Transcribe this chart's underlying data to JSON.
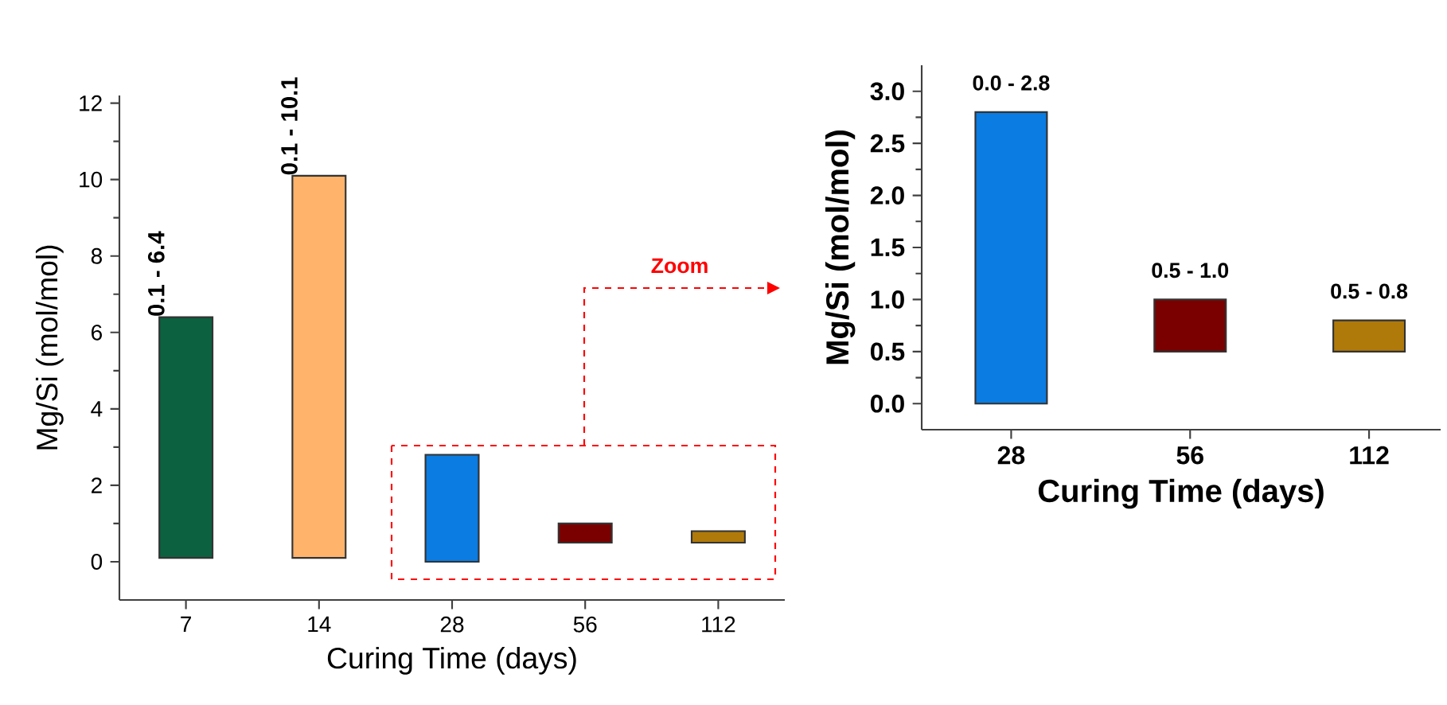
{
  "chart_data": [
    {
      "type": "bar",
      "categories": [
        "7",
        "14",
        "28",
        "56",
        "112"
      ],
      "base": [
        0.1,
        0.1,
        0.0,
        0.5,
        0.5
      ],
      "values": [
        6.3,
        10.0,
        2.8,
        0.5,
        0.3
      ],
      "colors": [
        "#0b6140",
        "#ffb36b",
        "#0a7ce2",
        "#7a0000",
        "#b07a0a"
      ],
      "xlabel": "Curing Time (days)",
      "ylabel": "Mg/Si (mol/mol)",
      "ylim": [
        -1,
        12.2
      ],
      "yticks": [
        0,
        2,
        4,
        6,
        8,
        10,
        12
      ],
      "annotations": [
        {
          "text": "0.1 - 6.4",
          "x": "7",
          "y": 6.4
        },
        {
          "text": "0.1 - 10.1",
          "x": "14",
          "y": 10.1
        },
        "Zoom"
      ]
    },
    {
      "type": "bar",
      "categories": [
        "28",
        "56",
        "112"
      ],
      "base": [
        0.0,
        0.5,
        0.5
      ],
      "values": [
        2.8,
        0.5,
        0.3
      ],
      "colors": [
        "#0a7ce2",
        "#7a0000",
        "#b07a0a"
      ],
      "xlabel": "Curing Time (days)",
      "ylabel": "Mg/Si (mol/mol)",
      "ylim": [
        -0.25,
        3.25
      ],
      "annotations": [
        {
          "text": "0.0 - 2.8",
          "x": "28",
          "y": 2.8
        },
        {
          "text": "0.5 - 1.0",
          "x": "56",
          "y": 1.0
        },
        {
          "text": "0.5 - 0.8",
          "x": "112",
          "y": 0.8
        }
      ],
      "yticks": [
        {
          "value": 0,
          "label": "0.0"
        },
        {
          "value": 0.5,
          "label": "0.5"
        },
        {
          "value": 1,
          "label": "1.0"
        },
        {
          "value": 1.5,
          "label": "1.5"
        },
        {
          "value": 2,
          "label": "2.0"
        },
        {
          "value": 2.5,
          "label": "2.5"
        },
        {
          "value": 3,
          "label": "3.0"
        }
      ]
    }
  ]
}
